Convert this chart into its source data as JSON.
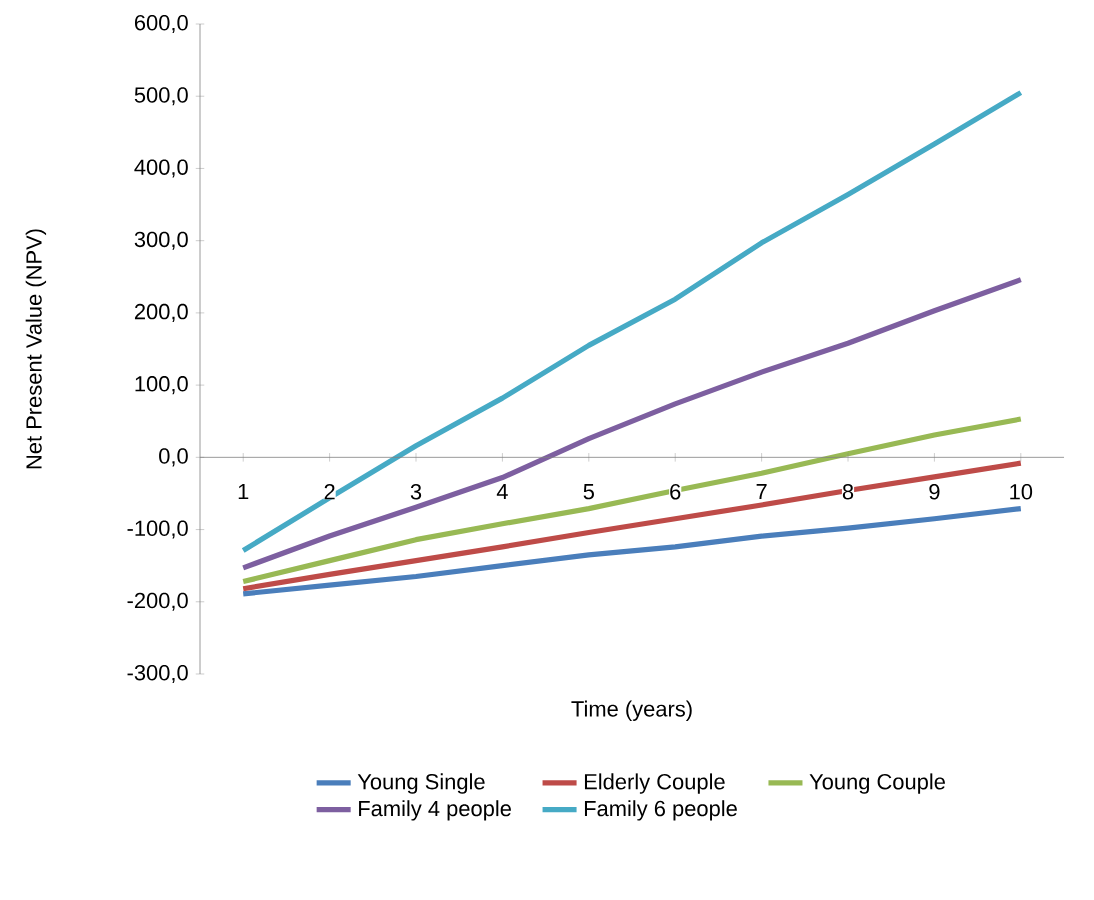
{
  "chart_data": {
    "type": "line",
    "xlabel": "Time (years)",
    "ylabel": "Net Present Value  (NPV)",
    "categories": [
      "1",
      "2",
      "3",
      "4",
      "5",
      "6",
      "7",
      "8",
      "9",
      "10"
    ],
    "ylim": [
      -300,
      600
    ],
    "yticks": [
      {
        "value": -300,
        "label": "-300,0"
      },
      {
        "value": -200,
        "label": "-200,0"
      },
      {
        "value": -100,
        "label": "-100,0"
      },
      {
        "value": 0,
        "label": "0,0"
      },
      {
        "value": 100,
        "label": "100,0"
      },
      {
        "value": 200,
        "label": "200,0"
      },
      {
        "value": 300,
        "label": "300,0"
      },
      {
        "value": 400,
        "label": "400,0"
      },
      {
        "value": 500,
        "label": "500,0"
      },
      {
        "value": 600,
        "label": "600,0"
      }
    ],
    "grid": false,
    "legend": "bottom",
    "marker": "none",
    "line_style": "solid",
    "series": [
      {
        "name": "Young Single",
        "color": "#4a7ebb",
        "values": [
          -189,
          -177,
          -165,
          -150,
          -135,
          -124,
          -109,
          -98,
          -85,
          -71
        ]
      },
      {
        "name": "Elderly Couple",
        "color": "#be4b48",
        "values": [
          -182,
          -162,
          -143,
          -124,
          -104,
          -85,
          -66,
          -46,
          -27,
          -8
        ]
      },
      {
        "name": "Young Couple",
        "color": "#98b954",
        "values": [
          -172,
          -143,
          -114,
          -92,
          -71,
          -46,
          -22,
          5,
          31,
          53
        ]
      },
      {
        "name": "Family 4 people",
        "color": "#7d5fa0",
        "values": [
          -153,
          -109,
          -69,
          -28,
          26,
          74,
          118,
          158,
          203,
          246
        ]
      },
      {
        "name": "Family 6 people",
        "color": "#46aac5",
        "values": [
          -129,
          -56,
          16,
          82,
          155,
          219,
          297,
          364,
          434,
          505
        ]
      }
    ]
  }
}
